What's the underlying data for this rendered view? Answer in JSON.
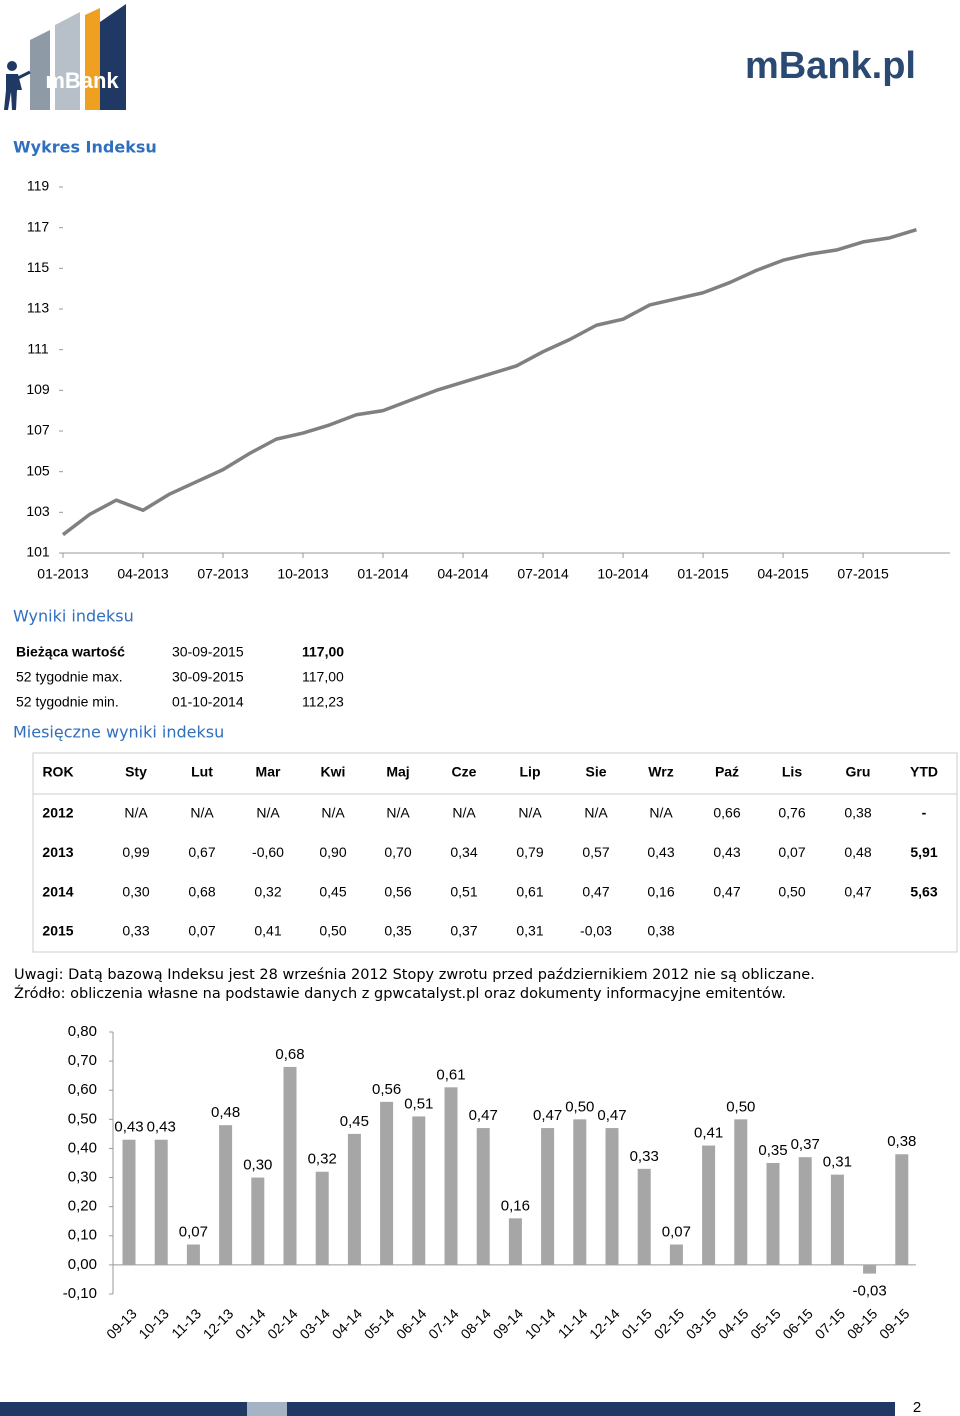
{
  "header": {
    "logo_left": "mBank",
    "logo_right": "mBank.pl"
  },
  "sections": {
    "chart": "Wykres Indeksu",
    "results": "Wyniki indeksu",
    "monthly": "Miesięczne wyniki indeksu"
  },
  "summary": {
    "rows": [
      [
        "Bieżąca wartość",
        "30-09-2015",
        "117,00"
      ],
      [
        "52 tygodnie max.",
        "30-09-2015",
        "117,00"
      ],
      [
        "52 tygodnie min.",
        "01-10-2014",
        "112,23"
      ]
    ]
  },
  "monthly": {
    "header": [
      "ROK",
      "Sty",
      "Lut",
      "Mar",
      "Kwi",
      "Maj",
      "Cze",
      "Lip",
      "Sie",
      "Wrz",
      "Paź",
      "Lis",
      "Gru",
      "YTD"
    ],
    "rows": [
      [
        "2012",
        "N/A",
        "N/A",
        "N/A",
        "N/A",
        "N/A",
        "N/A",
        "N/A",
        "N/A",
        "N/A",
        "0,66",
        "0,76",
        "0,38",
        "-"
      ],
      [
        "2013",
        "0,99",
        "0,67",
        "-0,60",
        "0,90",
        "0,70",
        "0,34",
        "0,79",
        "0,57",
        "0,43",
        "0,43",
        "0,07",
        "0,48",
        "5,91"
      ],
      [
        "2014",
        "0,30",
        "0,68",
        "0,32",
        "0,45",
        "0,56",
        "0,51",
        "0,61",
        "0,47",
        "0,16",
        "0,47",
        "0,50",
        "0,47",
        "5,63"
      ],
      [
        "2015",
        "0,33",
        "0,07",
        "0,41",
        "0,50",
        "0,35",
        "0,37",
        "0,31",
        "-0,03",
        "0,38"
      ]
    ]
  },
  "notes": [
    "Uwagi: Datą bazową Indeksu jest 28 września 2012 Stopy zwrotu przed październikiem 2012 nie są obliczane.",
    "Źródło: obliczenia własne na podstawie danych z gpwcatalyst.pl oraz dokumenty informacyjne emitentów."
  ],
  "page_number": "2",
  "chart_data": [
    {
      "type": "line",
      "color": "#808080",
      "x": [
        "01-2013",
        "02-2013",
        "03-2013",
        "04-2013",
        "05-2013",
        "06-2013",
        "07-2013",
        "08-2013",
        "09-2013",
        "10-2013",
        "11-2013",
        "12-2013",
        "01-2014",
        "02-2014",
        "03-2014",
        "04-2014",
        "05-2014",
        "06-2014",
        "07-2014",
        "08-2014",
        "09-2014",
        "10-2014",
        "11-2014",
        "12-2014",
        "01-2015",
        "02-2015",
        "03-2015",
        "04-2015",
        "05-2015",
        "06-2015",
        "07-2015",
        "08-2015",
        "09-2015"
      ],
      "values": [
        101.9,
        102.9,
        103.6,
        103.1,
        103.9,
        104.5,
        105.1,
        105.9,
        106.6,
        106.9,
        107.3,
        107.8,
        108.0,
        108.5,
        109.0,
        109.4,
        109.8,
        110.2,
        110.9,
        111.5,
        112.2,
        112.5,
        113.2,
        113.5,
        113.8,
        114.3,
        114.9,
        115.4,
        115.7,
        115.9,
        116.3,
        116.5,
        116.9
      ],
      "xticks": [
        "01-2013",
        "04-2013",
        "07-2013",
        "10-2013",
        "01-2014",
        "04-2014",
        "07-2014",
        "10-2014",
        "01-2015",
        "04-2015",
        "07-2015"
      ],
      "ylim": [
        101,
        119
      ],
      "yticks": [
        101,
        103,
        105,
        107,
        109,
        111,
        113,
        115,
        117,
        119
      ]
    },
    {
      "type": "bar",
      "color": "#a6a6a6",
      "categories": [
        "09-13",
        "10-13",
        "11-13",
        "12-13",
        "01-14",
        "02-14",
        "03-14",
        "04-14",
        "05-14",
        "06-14",
        "07-14",
        "08-14",
        "09-14",
        "10-14",
        "11-14",
        "12-14",
        "01-15",
        "02-15",
        "03-15",
        "04-15",
        "05-15",
        "06-15",
        "07-15",
        "08-15",
        "09-15"
      ],
      "values": [
        0.43,
        0.43,
        0.07,
        0.48,
        0.3,
        0.68,
        0.32,
        0.45,
        0.56,
        0.51,
        0.61,
        0.47,
        0.16,
        0.47,
        0.5,
        0.47,
        0.33,
        0.07,
        0.41,
        0.5,
        0.35,
        0.37,
        0.31,
        -0.03,
        0.38
      ],
      "value_labels": [
        "0,43",
        "0,43",
        "0,07",
        "0,48",
        "0,30",
        "0,68",
        "0,32",
        "0,45",
        "0,56",
        "0,51",
        "0,61",
        "0,47",
        "0,16",
        "0,47",
        "0,50",
        "0,47",
        "0,33",
        "0,07",
        "0,41",
        "0,50",
        "0,35",
        "0,37",
        "0,31",
        "-0,03",
        "0,38"
      ],
      "ylim": [
        -0.1,
        0.8
      ],
      "yticks": [
        {
          "value": -0.1,
          "label": "-0,10"
        },
        {
          "value": 0,
          "label": "0,00"
        },
        {
          "value": 0.1,
          "label": "0,10"
        },
        {
          "value": 0.2,
          "label": "0,20"
        },
        {
          "value": 0.3,
          "label": "0,30"
        },
        {
          "value": 0.4,
          "label": "0,40"
        },
        {
          "value": 0.5,
          "label": "0,50"
        },
        {
          "value": 0.6,
          "label": "0,60"
        },
        {
          "value": 0.7,
          "label": "0,70"
        },
        {
          "value": 0.8,
          "label": "0,80"
        }
      ]
    }
  ]
}
